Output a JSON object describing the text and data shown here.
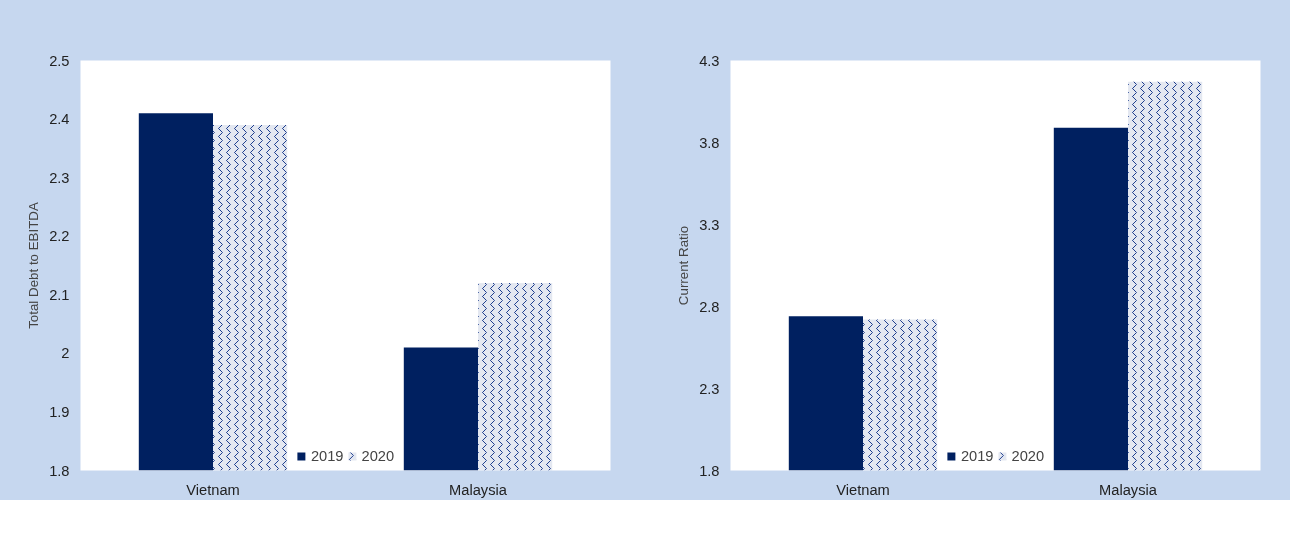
{
  "chart_data": [
    {
      "type": "bar",
      "ylabel": "Total Debt to EBITDA",
      "categories": [
        "Vietnam",
        "Malaysia"
      ],
      "series": [
        {
          "name": "2019",
          "color": "#002060",
          "values": [
            2.41,
            2.01
          ]
        },
        {
          "name": "2020",
          "color": "#1f3f8f",
          "values": [
            2.39,
            2.12
          ]
        }
      ],
      "ylim": [
        1.8,
        2.5
      ],
      "yticks": [
        1.8,
        1.9,
        2,
        2.1,
        2.2,
        2.3,
        2.4,
        2.5
      ],
      "grid": false,
      "legend": "bottom"
    },
    {
      "type": "bar",
      "ylabel": "Current Ratio",
      "categories": [
        "Vietnam",
        "Malaysia"
      ],
      "series": [
        {
          "name": "2019",
          "color": "#002060",
          "values": [
            2.74,
            3.89
          ]
        },
        {
          "name": "2020",
          "color": "#1f3f8f",
          "values": [
            2.72,
            4.17
          ]
        }
      ],
      "ylim": [
        1.8,
        4.3
      ],
      "yticks": [
        1.8,
        2.3,
        2.8,
        3.3,
        3.8,
        4.3
      ],
      "grid": false,
      "legend": "bottom"
    }
  ]
}
